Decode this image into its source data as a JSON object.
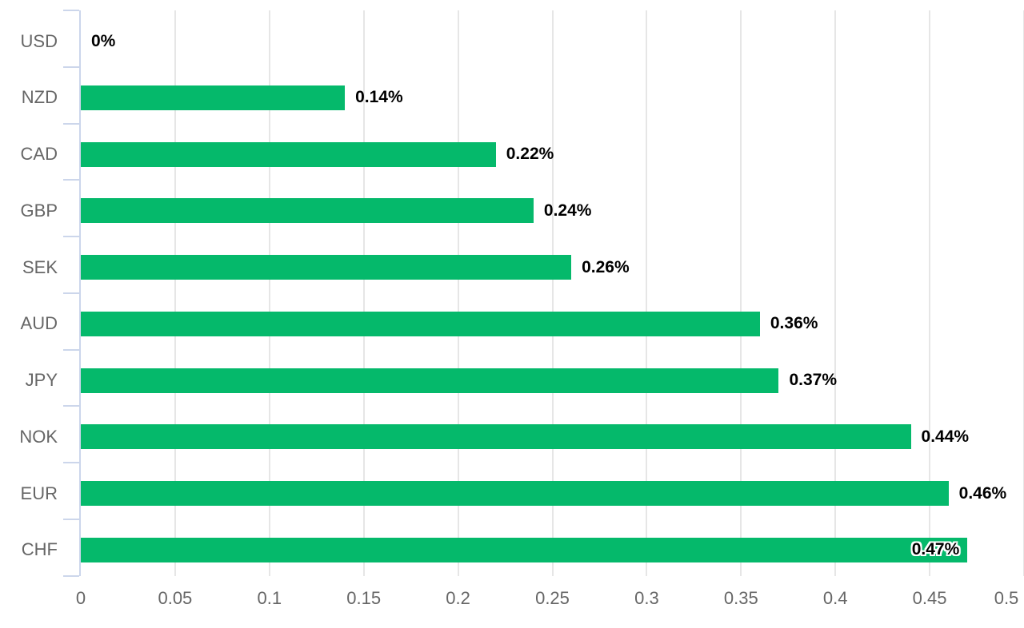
{
  "chart_data": {
    "type": "bar",
    "orientation": "horizontal",
    "title": "",
    "xlabel": "",
    "ylabel": "",
    "legend": false,
    "grid": true,
    "xlim": [
      0,
      0.5
    ],
    "x_tick_interval": 0.05,
    "x_tick_labels": [
      "0",
      "0.05",
      "0.1",
      "0.15",
      "0.2",
      "0.25",
      "0.3",
      "0.35",
      "0.4",
      "0.45",
      "0.5"
    ],
    "categories": [
      "USD",
      "NZD",
      "CAD",
      "GBP",
      "SEK",
      "AUD",
      "JPY",
      "NOK",
      "EUR",
      "CHF"
    ],
    "values": [
      0,
      0.14,
      0.22,
      0.24,
      0.26,
      0.36,
      0.37,
      0.44,
      0.46,
      0.47
    ],
    "points": [
      {
        "category": "USD",
        "value": 0,
        "label": "0%",
        "inside_label": false
      },
      {
        "category": "NZD",
        "value": 0.14,
        "label": "0.14%",
        "inside_label": false
      },
      {
        "category": "CAD",
        "value": 0.22,
        "label": "0.22%",
        "inside_label": false
      },
      {
        "category": "GBP",
        "value": 0.24,
        "label": "0.24%",
        "inside_label": false
      },
      {
        "category": "SEK",
        "value": 0.26,
        "label": "0.26%",
        "inside_label": false
      },
      {
        "category": "AUD",
        "value": 0.36,
        "label": "0.36%",
        "inside_label": false
      },
      {
        "category": "JPY",
        "value": 0.37,
        "label": "0.37%",
        "inside_label": false
      },
      {
        "category": "NOK",
        "value": 0.44,
        "label": "0.44%",
        "inside_label": false
      },
      {
        "category": "EUR",
        "value": 0.46,
        "label": "0.46%",
        "inside_label": false
      },
      {
        "category": "CHF",
        "value": 0.47,
        "label": "0.47%",
        "inside_label": true
      }
    ],
    "colors": {
      "bar": "#05b96b",
      "gridline": "#e6e6e6",
      "axis_line": "#ccd6eb",
      "tick": "#ccd6eb",
      "axis_label_text": "#666666",
      "data_label_text": "#000000",
      "background": "#ffffff"
    }
  }
}
